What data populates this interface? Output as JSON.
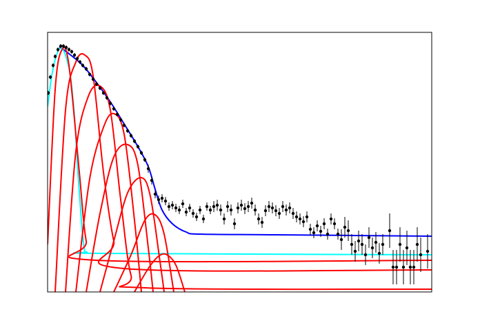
{
  "chart_data": {
    "type": "line",
    "xlim": [
      0,
      557
    ],
    "ylim": [
      0,
      377
    ],
    "series": [
      {
        "type": "errorbar",
        "color": "#000000",
        "x": [
          1,
          4,
          8,
          11,
          15,
          19,
          23,
          27,
          31,
          35,
          39,
          43,
          47,
          51,
          56,
          61,
          66,
          71,
          76,
          81,
          86,
          91,
          96,
          101,
          106,
          111,
          116,
          121,
          126,
          131,
          136,
          141,
          146,
          151,
          156,
          161,
          166,
          171,
          176,
          181,
          186,
          191,
          196,
          201,
          206,
          211,
          216,
          221,
          226,
          231,
          236,
          241,
          246,
          251,
          256,
          261,
          266,
          271,
          276,
          281,
          286,
          291,
          296,
          301,
          306,
          311,
          316,
          321,
          326,
          331,
          336,
          341,
          346,
          351,
          356,
          361,
          366,
          371,
          376,
          381,
          386,
          391,
          396,
          401,
          406,
          411,
          416,
          421,
          426,
          431,
          436,
          441,
          446,
          451,
          456,
          461,
          466,
          471,
          476,
          481,
          486,
          496,
          501,
          506,
          511,
          516,
          521,
          526,
          531,
          536,
          541,
          551
        ],
        "values": [
          289,
          312,
          329,
          342,
          352,
          357,
          357,
          355,
          352,
          349,
          344,
          339,
          334,
          329,
          324,
          316,
          309,
          302,
          296,
          289,
          282,
          274,
          266,
          258,
          250,
          242,
          234,
          227,
          219,
          211,
          202,
          192,
          179,
          162,
          142,
          134,
          136,
          132,
          124,
          126,
          122,
          119,
          128,
          116,
          122,
          114,
          109,
          119,
          106,
          124,
          119,
          124,
          126,
          119,
          106,
          124,
          119,
          99,
          122,
          126,
          121,
          124,
          129,
          119,
          106,
          101,
          118,
          124,
          122,
          118,
          114,
          124,
          119,
          122,
          114,
          109,
          106,
          102,
          109,
          91,
          86,
          96,
          88,
          99,
          84,
          106,
          99,
          84,
          76,
          94,
          89,
          69,
          59,
          74,
          69,
          54,
          79,
          64,
          72,
          56,
          69,
          89,
          36,
          36,
          69,
          36,
          64,
          36,
          36,
          69,
          54,
          59
        ],
        "errors": [
          3,
          3,
          3,
          3,
          3,
          3,
          3,
          3,
          3,
          3,
          3,
          3,
          3,
          3,
          3,
          3,
          3,
          3,
          3,
          3,
          3,
          3,
          3,
          3,
          3,
          3,
          3,
          3,
          3,
          3,
          3,
          3,
          6,
          6,
          6,
          6,
          6,
          6,
          6,
          6,
          6,
          6,
          6,
          6,
          6,
          6,
          6,
          6,
          6,
          6,
          6,
          8,
          8,
          8,
          8,
          8,
          8,
          8,
          8,
          8,
          8,
          8,
          8,
          8,
          8,
          8,
          8,
          8,
          8,
          8,
          8,
          8,
          8,
          8,
          8,
          8,
          8,
          8,
          8,
          8,
          8,
          8,
          8,
          8,
          8,
          8,
          8,
          8,
          15,
          15,
          15,
          15,
          15,
          15,
          15,
          15,
          15,
          15,
          15,
          15,
          15,
          25,
          25,
          25,
          25,
          25,
          25,
          25,
          25,
          25,
          25,
          25
        ]
      },
      {
        "type": "line",
        "color": "#0000ff",
        "x": [
          17,
          31,
          51,
          71,
          91,
          111,
          131,
          146,
          156,
          166,
          181,
          201,
          221,
          331,
          557
        ],
        "values": [
          356,
          346,
          329,
          304,
          276,
          244,
          211,
          182,
          149,
          119,
          99,
          87,
          84,
          83,
          81
        ]
      },
      {
        "type": "line",
        "color": "#00ffff",
        "x": [
          0,
          6,
          13,
          19,
          26,
          33,
          39,
          44,
          49,
          53,
          57,
          81,
          557
        ],
        "values": [
          269,
          314,
          344,
          354,
          344,
          314,
          254,
          174,
          104,
          64,
          58,
          56,
          54
        ]
      },
      {
        "type": "line",
        "color": "#ff0000",
        "x": [
          0,
          11,
          21,
          31,
          46,
          56,
          71,
          557
        ],
        "values": [
          69,
          294,
          352,
          329,
          174,
          74,
          46,
          46
        ]
      },
      {
        "type": "line",
        "color": "#ff0000",
        "x": [
          11,
          26,
          41,
          54,
          66,
          81,
          96,
          111,
          557
        ],
        "values": [
          0,
          264,
          334,
          344,
          314,
          174,
          74,
          34,
          32
        ]
      },
      {
        "type": "line",
        "color": "#ff0000",
        "x": [
          26,
          41,
          59,
          76,
          91,
          106,
          121,
          141,
          557
        ],
        "values": [
          0,
          204,
          284,
          299,
          264,
          134,
          24,
          6,
          4
        ]
      },
      {
        "type": "line",
        "color": "#ff0000",
        "x": [
          41,
          61,
          81,
          96,
          111,
          126,
          136
        ],
        "values": [
          0,
          164,
          239,
          259,
          229,
          104,
          0
        ]
      },
      {
        "type": "line",
        "color": "#ff0000",
        "x": [
          56,
          76,
          96,
          116,
          131,
          146,
          153
        ],
        "values": [
          0,
          114,
          196,
          214,
          184,
          64,
          0
        ]
      },
      {
        "type": "line",
        "color": "#ff0000",
        "x": [
          76,
          96,
          116,
          136,
          149,
          163,
          169
        ],
        "values": [
          0,
          74,
          144,
          166,
          139,
          44,
          0
        ]
      },
      {
        "type": "line",
        "color": "#ff0000",
        "x": [
          96,
          121,
          141,
          156,
          169,
          183
        ],
        "values": [
          0,
          54,
          104,
          112,
          84,
          0
        ]
      },
      {
        "type": "line",
        "color": "#ff0000",
        "x": [
          126,
          146,
          161,
          173,
          186,
          199
        ],
        "values": [
          0,
          34,
          52,
          54,
          39,
          0
        ]
      }
    ]
  }
}
